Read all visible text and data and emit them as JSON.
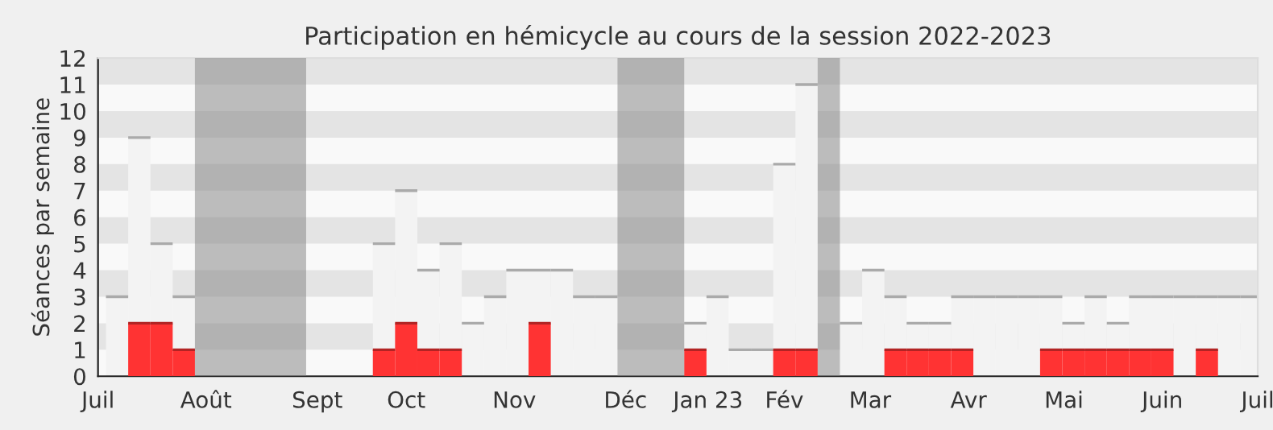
{
  "chart_data": {
    "type": "bar",
    "title": "Participation en hémicycle au cours de la session 2022-2023",
    "ylabel": "Séances par semaine",
    "x": [
      "2022-07-07",
      "2022-07-14",
      "2022-07-21",
      "2022-07-28",
      "2022-08-04",
      "2022-08-11",
      "2022-08-18",
      "2022-08-25",
      "2022-09-01",
      "2022-09-08",
      "2022-09-15",
      "2022-09-22",
      "2022-09-29",
      "2022-10-06",
      "2022-10-13",
      "2022-10-20",
      "2022-10-27",
      "2022-11-03",
      "2022-11-10",
      "2022-11-17",
      "2022-11-24",
      "2022-12-01",
      "2022-12-08",
      "2022-12-15",
      "2022-12-22",
      "2022-12-29",
      "2023-01-05",
      "2023-01-12",
      "2023-01-19",
      "2023-01-26",
      "2023-02-02",
      "2023-02-09",
      "2023-02-16",
      "2023-02-23",
      "2023-03-02",
      "2023-03-09",
      "2023-03-16",
      "2023-03-23",
      "2023-03-30",
      "2023-04-06",
      "2023-04-13",
      "2023-04-20",
      "2023-04-27",
      "2023-05-04",
      "2023-05-11",
      "2023-05-18",
      "2023-05-25",
      "2023-06-01",
      "2023-06-08",
      "2023-06-15",
      "2023-06-22",
      "2023-06-29"
    ],
    "series": [
      {
        "color": "#f3f3f3",
        "values": [
          3,
          9,
          5,
          3,
          null,
          null,
          null,
          null,
          null,
          0,
          0,
          0,
          5,
          7,
          4,
          5,
          2,
          3,
          4,
          4,
          4,
          3,
          3,
          null,
          null,
          null,
          2,
          3,
          1,
          1,
          8,
          11,
          null,
          2,
          4,
          3,
          2,
          2,
          3,
          3,
          3,
          3,
          3,
          2,
          3,
          2,
          3,
          3,
          3,
          3,
          3,
          3
        ]
      },
      {
        "color": "#ff3333",
        "values": [
          0,
          2,
          2,
          1,
          null,
          null,
          null,
          null,
          null,
          0,
          0,
          0,
          1,
          2,
          1,
          1,
          0,
          0,
          0,
          2,
          0,
          0,
          0,
          null,
          null,
          null,
          1,
          0,
          0,
          0,
          1,
          1,
          null,
          0,
          0,
          1,
          1,
          1,
          1,
          0,
          0,
          0,
          1,
          1,
          1,
          1,
          1,
          1,
          0,
          1,
          0,
          0
        ]
      }
    ],
    "bands": [
      {
        "axis": "x",
        "from": "2022-07-31T12:00",
        "to": "2022-09-04T12:00",
        "color": "#808080"
      },
      {
        "axis": "x",
        "from": "2022-12-11T12:00",
        "to": "2023-01-01T12:00",
        "color": "#808080"
      },
      {
        "axis": "x",
        "from": "2023-02-12T12:00",
        "to": "2023-02-19T12:00",
        "color": "#808080"
      },
      {
        "axis": "y",
        "from": 1,
        "to": 2,
        "color": "#cfcfcf"
      },
      {
        "axis": "y",
        "from": 3,
        "to": 4,
        "color": "#cfcfcf"
      },
      {
        "axis": "y",
        "from": 5,
        "to": 6,
        "color": "#cfcfcf"
      },
      {
        "axis": "y",
        "from": 7,
        "to": 8,
        "color": "#cfcfcf"
      },
      {
        "axis": "y",
        "from": 9,
        "to": 10,
        "color": "#cfcfcf"
      },
      {
        "axis": "y",
        "from": 11,
        "to": 12,
        "color": "#cfcfcf"
      }
    ],
    "xlim": [
      "2022-07-01",
      "2023-07-01"
    ],
    "xticks": [
      {
        "value": "2022-07-01",
        "label": "Juil"
      },
      {
        "value": "2022-08-04",
        "label": "Août"
      },
      {
        "value": "2022-09-08",
        "label": "Sept"
      },
      {
        "value": "2022-10-06",
        "label": "Oct"
      },
      {
        "value": "2022-11-09",
        "label": "Nov"
      },
      {
        "value": "2022-12-14",
        "label": "Déc"
      },
      {
        "value": "2023-01-09",
        "label": "Jan 23"
      },
      {
        "value": "2023-02-02",
        "label": "Fév"
      },
      {
        "value": "2023-03-01",
        "label": "Mar"
      },
      {
        "value": "2023-04-01",
        "label": "Avr"
      },
      {
        "value": "2023-05-01",
        "label": "Mai"
      },
      {
        "value": "2023-06-01",
        "label": "Juin"
      },
      {
        "value": "2023-07-01",
        "label": "Juil"
      }
    ],
    "ylim": [
      0,
      12
    ],
    "yticks": [
      0,
      1,
      2,
      3,
      4,
      5,
      6,
      7,
      8,
      9,
      10,
      11,
      12
    ],
    "legend": false
  }
}
